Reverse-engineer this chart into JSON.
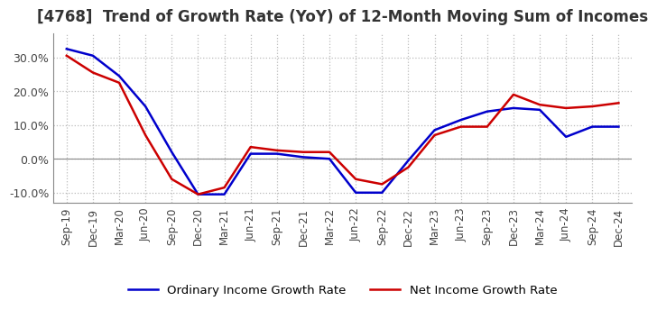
{
  "title": "[4768]  Trend of Growth Rate (YoY) of 12-Month Moving Sum of Incomes",
  "title_fontsize": 12,
  "ylim": [
    -0.13,
    0.37
  ],
  "yticks": [
    -0.1,
    0.0,
    0.1,
    0.2,
    0.3
  ],
  "yticklabels": [
    "-10.0%",
    "0.0%",
    "10.0%",
    "20.0%",
    "30.0%"
  ],
  "background_color": "#ffffff",
  "grid_color": "#bbbbbb",
  "ordinary_color": "#0000cc",
  "net_color": "#cc0000",
  "legend_ordinary": "Ordinary Income Growth Rate",
  "legend_net": "Net Income Growth Rate",
  "x_labels": [
    "Sep-19",
    "Dec-19",
    "Mar-20",
    "Jun-20",
    "Sep-20",
    "Dec-20",
    "Mar-21",
    "Jun-21",
    "Sep-21",
    "Dec-21",
    "Mar-22",
    "Jun-22",
    "Sep-22",
    "Dec-22",
    "Mar-23",
    "Jun-23",
    "Sep-23",
    "Dec-23",
    "Mar-24",
    "Jun-24",
    "Sep-24",
    "Dec-24"
  ],
  "ordinary_y": [
    0.325,
    0.305,
    0.245,
    0.155,
    0.02,
    -0.105,
    -0.105,
    0.015,
    0.015,
    0.005,
    0.0,
    -0.1,
    -0.1,
    -0.005,
    0.085,
    0.115,
    0.14,
    0.15,
    0.145,
    0.065,
    0.095,
    0.095
  ],
  "net_y": [
    0.305,
    0.255,
    0.225,
    0.07,
    -0.06,
    -0.105,
    -0.085,
    0.035,
    0.025,
    0.02,
    0.02,
    -0.06,
    -0.075,
    -0.025,
    0.07,
    0.095,
    0.095,
    0.19,
    0.16,
    0.15,
    0.155,
    0.165
  ]
}
